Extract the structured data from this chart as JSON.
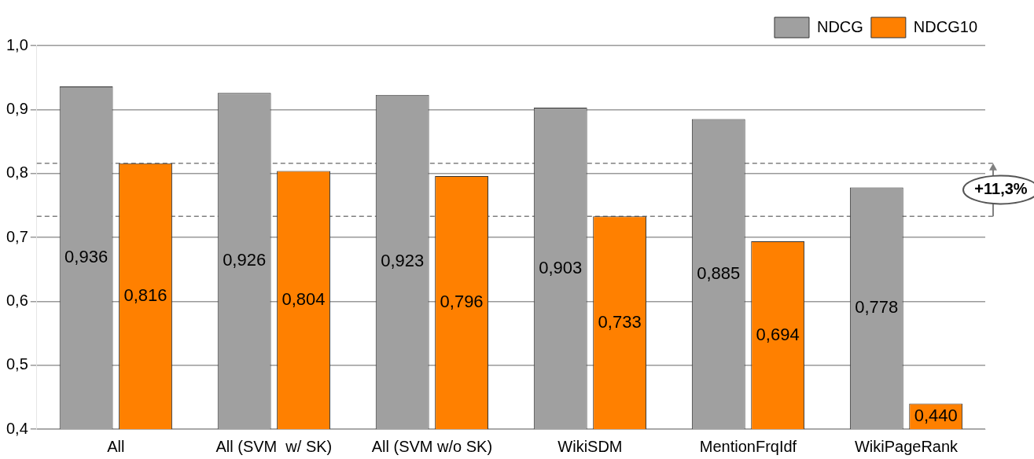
{
  "chart_data": {
    "type": "bar",
    "categories": [
      "All",
      "All (SVM  w/ SK)",
      "All (SVM w/o SK)",
      "WikiSDM",
      "MentionFrqIdf",
      "WikiPageRank"
    ],
    "series": [
      {
        "name": "NDCG",
        "color": "#a0a0a0",
        "values": [
          0.936,
          0.926,
          0.923,
          0.903,
          0.885,
          0.778
        ],
        "value_labels": [
          "0,936",
          "0,926",
          "0,923",
          "0,903",
          "0,885",
          "0,778"
        ]
      },
      {
        "name": "NDCG10",
        "color": "#ff8000",
        "values": [
          0.816,
          0.804,
          0.796,
          0.733,
          0.694,
          0.44
        ],
        "value_labels": [
          "0,816",
          "0,804",
          "0,796",
          "0,733",
          "0,694",
          "0,440"
        ]
      }
    ],
    "ylim": [
      0.4,
      1.0
    ],
    "yticks": [
      {
        "value": 0.4,
        "label": "0,4"
      },
      {
        "value": 0.5,
        "label": "0,5"
      },
      {
        "value": 0.6,
        "label": "0,6"
      },
      {
        "value": 0.7,
        "label": "0,7"
      },
      {
        "value": 0.8,
        "label": "0,8"
      },
      {
        "value": 0.9,
        "label": "0,9"
      },
      {
        "value": 1.0,
        "label": "1,0"
      }
    ],
    "grid": "y",
    "legend": "top right",
    "ref_lines": [
      {
        "axis": "y",
        "value": 0.816,
        "color": "#808080",
        "line_style": "dashed"
      },
      {
        "axis": "y",
        "value": 0.733,
        "color": "#808080",
        "line_style": "dashed"
      }
    ],
    "annotations": [
      "+11,3%"
    ]
  }
}
